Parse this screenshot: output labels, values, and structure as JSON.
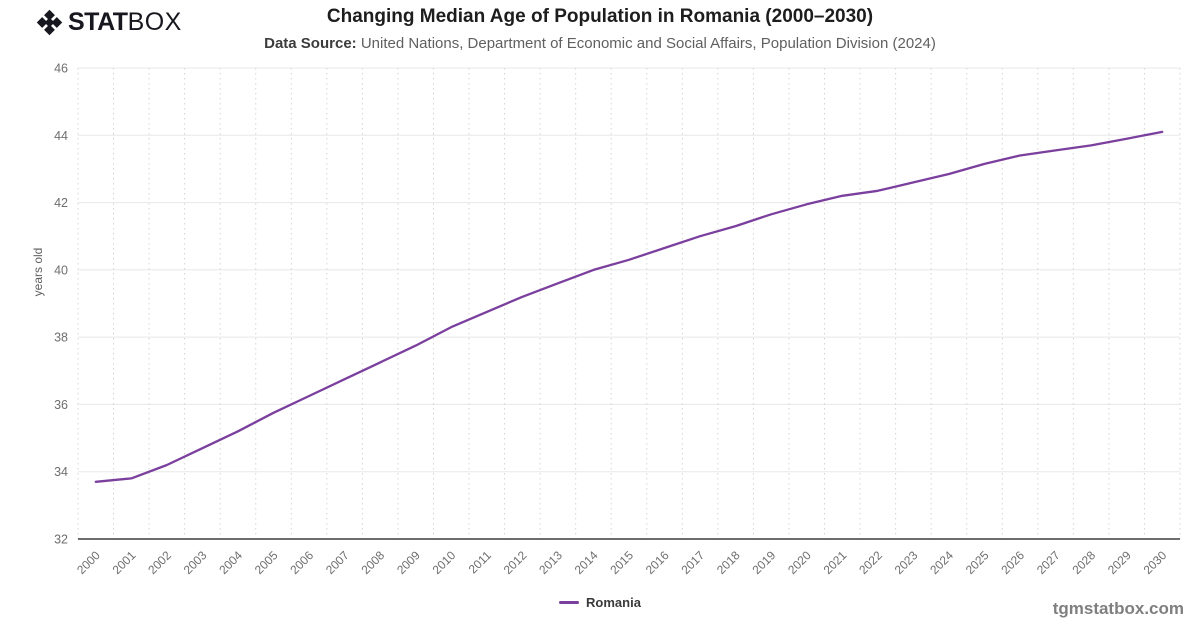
{
  "brand": {
    "stat": "STAT",
    "box": "BOX",
    "icon_color": "#17171f"
  },
  "header": {
    "title": "Changing Median Age of Population in Romania (2000–2030)",
    "source_label": "Data Source:",
    "source_text": " United Nations, Department of Economic and Social Affairs, Population Division (2024)"
  },
  "footer": {
    "site": "tgmstatbox.com"
  },
  "colors": {
    "line": "#7b3f9e",
    "grid_h": "#e8e8e8",
    "grid_v": "#d4d4d4",
    "axis_line": "#3d3d3d",
    "tick_text": "#6e6e6e"
  },
  "chart_data": {
    "type": "line",
    "title": "Changing Median Age of Population in Romania (2000–2030)",
    "xlabel": "",
    "ylabel": "years old",
    "ylim": [
      32,
      46
    ],
    "yticks": [
      32,
      34,
      36,
      38,
      40,
      42,
      44,
      46
    ],
    "grid": {
      "horizontal": "solid",
      "vertical": "dotted"
    },
    "legend_position": "bottom-center",
    "x": [
      2000,
      2001,
      2002,
      2003,
      2004,
      2005,
      2006,
      2007,
      2008,
      2009,
      2010,
      2011,
      2012,
      2013,
      2014,
      2015,
      2016,
      2017,
      2018,
      2019,
      2020,
      2021,
      2022,
      2023,
      2024,
      2025,
      2026,
      2027,
      2028,
      2029,
      2030
    ],
    "series": [
      {
        "name": "Romania",
        "color": "#7b3f9e",
        "values": [
          33.7,
          33.8,
          34.2,
          34.7,
          35.2,
          35.75,
          36.25,
          36.75,
          37.25,
          37.75,
          38.3,
          38.75,
          39.2,
          39.6,
          40.0,
          40.3,
          40.65,
          41.0,
          41.3,
          41.65,
          41.95,
          42.2,
          42.35,
          42.6,
          42.85,
          43.15,
          43.4,
          43.55,
          43.7,
          43.9,
          44.1
        ]
      }
    ]
  }
}
